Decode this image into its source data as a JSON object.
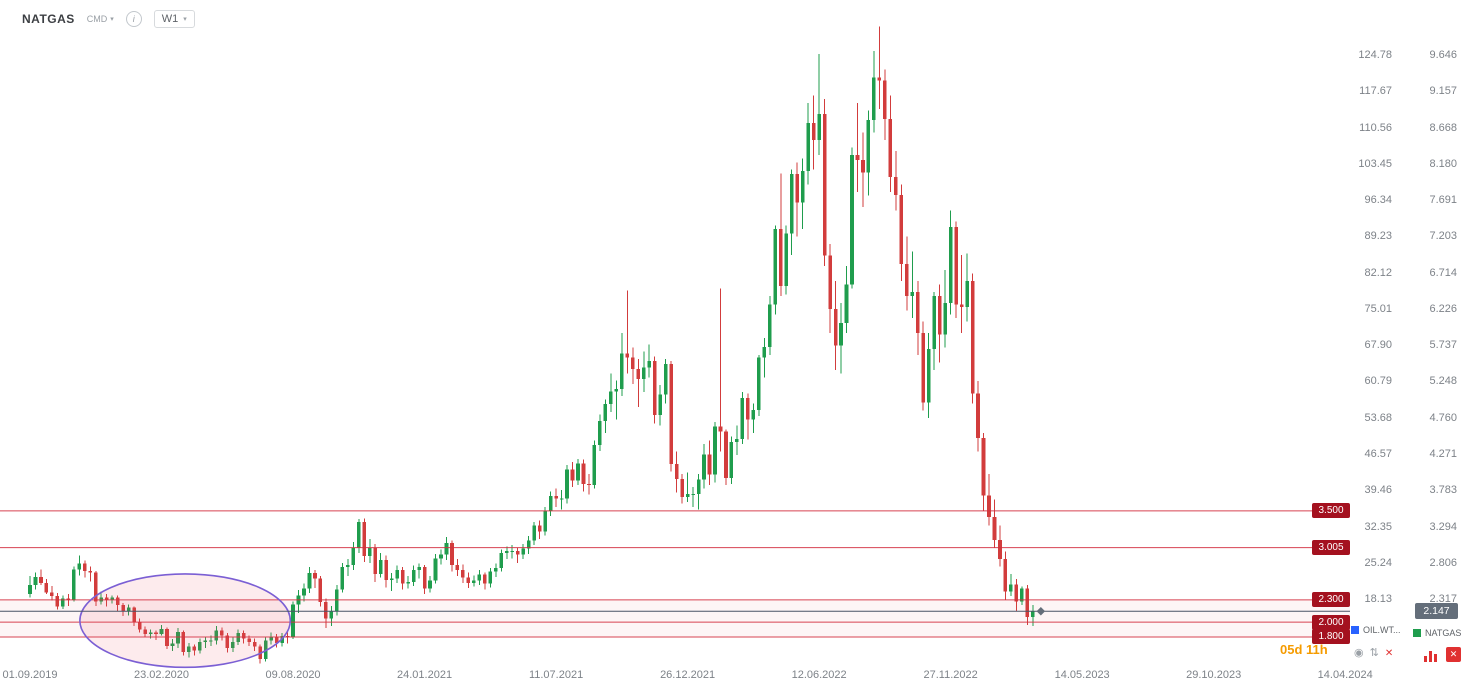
{
  "header": {
    "symbol": "NATGAS",
    "market": "CMD",
    "timeframe": "W1"
  },
  "legend": {
    "overlay_symbol": "OIL.WT...",
    "main_symbol": "NATGAS"
  },
  "footer": {
    "candle_countdown": "05d 11h"
  },
  "colors": {
    "up": "#1f9d4d",
    "down": "#d23c3c",
    "level_line": "#d32f3f",
    "level_badge": "#a4111f",
    "current_badge": "#646e7a",
    "current_line": "#4a5566",
    "accent_orange": "#f59b00",
    "ellipse_stroke": "#7b5fd4",
    "ellipse_fill": "rgba(235,90,110,0.12)",
    "zone_fill": "rgba(220,60,80,0.05)",
    "overlay_square": "#2962ff",
    "main_square": "#1f9d4d",
    "close_red": "#e03131"
  },
  "chart_data": {
    "type": "candlestick",
    "title": "NATGAS weekly (W1) candlestick chart with horizontal price levels and ellipse annotation on the 2020 lows",
    "timeframe": "W1",
    "x_tick_labels": [
      "01.09.2019",
      "23.02.2020",
      "09.08.2020",
      "24.01.2021",
      "11.07.2021",
      "26.12.2021",
      "12.06.2022",
      "27.11.2022",
      "14.05.2023",
      "29.10.2023",
      "14.04.2024"
    ],
    "weeks_per_x_tick": 24,
    "y_axis_percent_labels": [
      "124.78",
      "117.67",
      "110.56",
      "103.45",
      "96.34",
      "89.23",
      "82.12",
      "75.01",
      "67.90",
      "60.79",
      "53.68",
      "46.57",
      "39.46",
      "32.35",
      "25.24",
      "18.13"
    ],
    "y_axis_price_labels": [
      "9.646",
      "9.157",
      "8.668",
      "8.180",
      "7.691",
      "7.203",
      "6.714",
      "6.226",
      "5.737",
      "5.248",
      "4.760",
      "4.271",
      "3.783",
      "3.294",
      "2.806",
      "2.317"
    ],
    "y_axis_top_value": 9.646,
    "y_axis_step": 0.489,
    "levels": [
      {
        "value": 3.5,
        "label": "3.500"
      },
      {
        "value": 3.005,
        "label": "3.005"
      },
      {
        "value": 2.3,
        "label": "2.300"
      },
      {
        "value": 2.0,
        "label": "2.000"
      },
      {
        "value": 1.8,
        "label": "1.800"
      }
    ],
    "shaded_zone": {
      "top": 2.3,
      "bottom": 1.8
    },
    "current_price": 2.147,
    "current_price_label": "2.147",
    "ellipse_annotation": {
      "center_week": 28.3,
      "center_price": 2.02,
      "radius_weeks": 19.2,
      "radius_price": 0.63
    },
    "ohlc_format": [
      "open",
      "high",
      "low",
      "close"
    ],
    "candles": [
      [
        2.38,
        2.62,
        2.33,
        2.5
      ],
      [
        2.5,
        2.67,
        2.44,
        2.61
      ],
      [
        2.61,
        2.71,
        2.5,
        2.53
      ],
      [
        2.53,
        2.58,
        2.38,
        2.4
      ],
      [
        2.4,
        2.49,
        2.29,
        2.35
      ],
      [
        2.35,
        2.39,
        2.17,
        2.21
      ],
      [
        2.21,
        2.36,
        2.18,
        2.32
      ],
      [
        2.32,
        2.38,
        2.22,
        2.3
      ],
      [
        2.3,
        2.75,
        2.28,
        2.71
      ],
      [
        2.71,
        2.9,
        2.63,
        2.79
      ],
      [
        2.79,
        2.83,
        2.6,
        2.69
      ],
      [
        2.69,
        2.75,
        2.55,
        2.67
      ],
      [
        2.67,
        2.69,
        2.22,
        2.28
      ],
      [
        2.28,
        2.41,
        2.24,
        2.33
      ],
      [
        2.33,
        2.38,
        2.21,
        2.3
      ],
      [
        2.3,
        2.36,
        2.25,
        2.33
      ],
      [
        2.33,
        2.36,
        2.15,
        2.23
      ],
      [
        2.23,
        2.26,
        2.08,
        2.14
      ],
      [
        2.14,
        2.24,
        2.09,
        2.2
      ],
      [
        2.2,
        2.21,
        1.95,
        2.0
      ],
      [
        2.0,
        2.05,
        1.86,
        1.9
      ],
      [
        1.9,
        1.94,
        1.8,
        1.84
      ],
      [
        1.84,
        1.9,
        1.78,
        1.86
      ],
      [
        1.86,
        1.89,
        1.76,
        1.84
      ],
      [
        1.84,
        1.96,
        1.82,
        1.91
      ],
      [
        1.91,
        1.93,
        1.64,
        1.68
      ],
      [
        1.68,
        1.77,
        1.61,
        1.71
      ],
      [
        1.71,
        1.92,
        1.65,
        1.87
      ],
      [
        1.87,
        1.89,
        1.55,
        1.6
      ],
      [
        1.6,
        1.72,
        1.52,
        1.67
      ],
      [
        1.67,
        1.7,
        1.55,
        1.62
      ],
      [
        1.62,
        1.78,
        1.58,
        1.73
      ],
      [
        1.73,
        1.8,
        1.65,
        1.75
      ],
      [
        1.75,
        1.82,
        1.68,
        1.75
      ],
      [
        1.75,
        1.95,
        1.7,
        1.89
      ],
      [
        1.89,
        1.93,
        1.75,
        1.82
      ],
      [
        1.82,
        1.85,
        1.59,
        1.65
      ],
      [
        1.65,
        1.79,
        1.6,
        1.73
      ],
      [
        1.73,
        1.9,
        1.69,
        1.85
      ],
      [
        1.85,
        1.89,
        1.71,
        1.78
      ],
      [
        1.78,
        1.82,
        1.68,
        1.73
      ],
      [
        1.73,
        1.78,
        1.61,
        1.67
      ],
      [
        1.67,
        1.7,
        1.44,
        1.5
      ],
      [
        1.5,
        1.79,
        1.47,
        1.75
      ],
      [
        1.75,
        1.86,
        1.7,
        1.8
      ],
      [
        1.8,
        1.84,
        1.66,
        1.72
      ],
      [
        1.72,
        1.85,
        1.67,
        1.81
      ],
      [
        1.81,
        1.86,
        1.71,
        1.8
      ],
      [
        1.8,
        2.28,
        1.77,
        2.24
      ],
      [
        2.24,
        2.43,
        2.12,
        2.36
      ],
      [
        2.36,
        2.52,
        2.28,
        2.45
      ],
      [
        2.45,
        2.74,
        2.39,
        2.66
      ],
      [
        2.66,
        2.7,
        2.46,
        2.59
      ],
      [
        2.59,
        2.62,
        2.21,
        2.27
      ],
      [
        2.27,
        2.32,
        1.92,
        2.05
      ],
      [
        2.05,
        2.22,
        1.95,
        2.14
      ],
      [
        2.14,
        2.5,
        2.09,
        2.44
      ],
      [
        2.44,
        2.8,
        2.4,
        2.74
      ],
      [
        2.74,
        2.85,
        2.62,
        2.77
      ],
      [
        2.77,
        3.08,
        2.7,
        3.0
      ],
      [
        3.0,
        3.39,
        2.93,
        3.35
      ],
      [
        3.35,
        3.4,
        2.81,
        2.89
      ],
      [
        2.89,
        3.12,
        2.8,
        3.0
      ],
      [
        3.0,
        3.05,
        2.54,
        2.65
      ],
      [
        2.65,
        2.93,
        2.6,
        2.84
      ],
      [
        2.84,
        2.9,
        2.47,
        2.57
      ],
      [
        2.57,
        2.66,
        2.42,
        2.59
      ],
      [
        2.59,
        2.76,
        2.53,
        2.7
      ],
      [
        2.7,
        2.74,
        2.44,
        2.52
      ],
      [
        2.52,
        2.62,
        2.45,
        2.54
      ],
      [
        2.54,
        2.76,
        2.49,
        2.7
      ],
      [
        2.7,
        2.79,
        2.59,
        2.74
      ],
      [
        2.74,
        2.77,
        2.38,
        2.45
      ],
      [
        2.45,
        2.62,
        2.4,
        2.56
      ],
      [
        2.56,
        2.92,
        2.52,
        2.86
      ],
      [
        2.86,
        2.98,
        2.78,
        2.91
      ],
      [
        2.91,
        3.15,
        2.84,
        3.07
      ],
      [
        3.07,
        3.1,
        2.68,
        2.77
      ],
      [
        2.77,
        2.85,
        2.62,
        2.7
      ],
      [
        2.7,
        2.78,
        2.53,
        2.6
      ],
      [
        2.6,
        2.67,
        2.46,
        2.53
      ],
      [
        2.53,
        2.63,
        2.48,
        2.56
      ],
      [
        2.56,
        2.7,
        2.5,
        2.64
      ],
      [
        2.64,
        2.67,
        2.44,
        2.52
      ],
      [
        2.52,
        2.73,
        2.47,
        2.68
      ],
      [
        2.68,
        2.79,
        2.61,
        2.73
      ],
      [
        2.73,
        2.98,
        2.68,
        2.93
      ],
      [
        2.93,
        3.02,
        2.85,
        2.96
      ],
      [
        2.96,
        3.04,
        2.86,
        2.96
      ],
      [
        2.96,
        3.0,
        2.8,
        2.91
      ],
      [
        2.91,
        3.05,
        2.85,
        2.99
      ],
      [
        2.99,
        3.16,
        2.92,
        3.1
      ],
      [
        3.1,
        3.35,
        3.04,
        3.3
      ],
      [
        3.3,
        3.37,
        3.12,
        3.22
      ],
      [
        3.22,
        3.55,
        3.17,
        3.5
      ],
      [
        3.5,
        3.76,
        3.43,
        3.7
      ],
      [
        3.7,
        3.8,
        3.55,
        3.67
      ],
      [
        3.67,
        3.78,
        3.52,
        3.67
      ],
      [
        3.67,
        4.12,
        3.6,
        4.06
      ],
      [
        4.06,
        4.16,
        3.82,
        3.91
      ],
      [
        3.91,
        4.2,
        3.85,
        4.14
      ],
      [
        4.14,
        4.19,
        3.76,
        3.86
      ],
      [
        3.86,
        4.0,
        3.72,
        3.85
      ],
      [
        3.85,
        4.45,
        3.8,
        4.39
      ],
      [
        4.39,
        4.8,
        4.31,
        4.71
      ],
      [
        4.71,
        5.0,
        4.55,
        4.94
      ],
      [
        4.94,
        5.35,
        4.83,
        5.11
      ],
      [
        5.11,
        5.26,
        4.73,
        5.14
      ],
      [
        5.14,
        5.9,
        5.05,
        5.62
      ],
      [
        5.62,
        6.47,
        5.35,
        5.57
      ],
      [
        5.57,
        5.7,
        5.21,
        5.41
      ],
      [
        5.41,
        5.55,
        4.9,
        5.28
      ],
      [
        5.28,
        5.65,
        5.1,
        5.43
      ],
      [
        5.43,
        5.74,
        5.3,
        5.52
      ],
      [
        5.52,
        5.58,
        4.68,
        4.79
      ],
      [
        4.79,
        5.2,
        4.65,
        5.07
      ],
      [
        5.07,
        5.55,
        4.95,
        5.48
      ],
      [
        5.48,
        5.52,
        4.03,
        4.13
      ],
      [
        4.13,
        4.3,
        3.75,
        3.93
      ],
      [
        3.93,
        4.0,
        3.6,
        3.69
      ],
      [
        3.69,
        4.02,
        3.62,
        3.73
      ],
      [
        3.73,
        3.82,
        3.55,
        3.73
      ],
      [
        3.73,
        4.0,
        3.52,
        3.92
      ],
      [
        3.92,
        4.4,
        3.8,
        4.26
      ],
      [
        4.26,
        4.45,
        3.85,
        3.99
      ],
      [
        3.99,
        4.7,
        3.88,
        4.64
      ],
      [
        4.64,
        6.5,
        4.3,
        4.57
      ],
      [
        4.57,
        4.6,
        3.85,
        3.94
      ],
      [
        3.94,
        4.5,
        3.86,
        4.43
      ],
      [
        4.43,
        4.65,
        4.25,
        4.47
      ],
      [
        4.47,
        5.1,
        4.4,
        5.02
      ],
      [
        5.02,
        5.08,
        4.46,
        4.73
      ],
      [
        4.73,
        4.95,
        4.55,
        4.86
      ],
      [
        4.86,
        5.6,
        4.78,
        5.57
      ],
      [
        5.57,
        5.83,
        5.3,
        5.71
      ],
      [
        5.71,
        6.4,
        5.6,
        6.28
      ],
      [
        6.28,
        7.35,
        6.15,
        7.3
      ],
      [
        7.3,
        8.05,
        6.4,
        6.53
      ],
      [
        6.53,
        7.35,
        6.42,
        7.24
      ],
      [
        7.24,
        8.1,
        6.95,
        8.04
      ],
      [
        8.04,
        8.2,
        7.2,
        7.66
      ],
      [
        7.66,
        8.25,
        7.3,
        8.08
      ],
      [
        8.08,
        9.0,
        7.9,
        8.73
      ],
      [
        8.73,
        9.1,
        8.1,
        8.5
      ],
      [
        8.5,
        9.66,
        8.3,
        8.85
      ],
      [
        8.85,
        9.05,
        6.8,
        6.94
      ],
      [
        6.94,
        7.1,
        5.9,
        6.22
      ],
      [
        6.22,
        6.6,
        5.4,
        5.73
      ],
      [
        5.73,
        6.3,
        5.35,
        6.03
      ],
      [
        6.03,
        6.8,
        5.9,
        6.55
      ],
      [
        6.55,
        8.4,
        6.5,
        8.3
      ],
      [
        8.3,
        9.0,
        7.8,
        8.23
      ],
      [
        8.23,
        8.6,
        7.6,
        8.06
      ],
      [
        8.06,
        8.9,
        7.75,
        8.77
      ],
      [
        8.77,
        9.7,
        8.6,
        9.34
      ],
      [
        9.34,
        10.03,
        8.92,
        9.3
      ],
      [
        9.3,
        9.45,
        8.5,
        8.78
      ],
      [
        8.78,
        9.1,
        7.8,
        8.0
      ],
      [
        8.0,
        8.35,
        7.55,
        7.76
      ],
      [
        7.76,
        7.9,
        6.6,
        6.83
      ],
      [
        6.83,
        7.2,
        6.2,
        6.4
      ],
      [
        6.4,
        7.0,
        6.1,
        6.45
      ],
      [
        6.45,
        6.6,
        5.6,
        5.9
      ],
      [
        5.9,
        6.05,
        4.85,
        4.96
      ],
      [
        4.96,
        5.9,
        4.75,
        5.68
      ],
      [
        5.68,
        6.45,
        5.4,
        6.4
      ],
      [
        6.4,
        6.55,
        5.5,
        5.88
      ],
      [
        5.88,
        6.75,
        5.7,
        6.3
      ],
      [
        6.3,
        7.55,
        6.15,
        7.33
      ],
      [
        7.33,
        7.4,
        6.1,
        6.28
      ],
      [
        6.28,
        6.95,
        5.9,
        6.25
      ],
      [
        6.25,
        6.97,
        6.05,
        6.6
      ],
      [
        6.6,
        6.7,
        4.95,
        5.08
      ],
      [
        5.08,
        5.25,
        4.3,
        4.48
      ],
      [
        4.48,
        4.55,
        3.5,
        3.71
      ],
      [
        3.71,
        4.0,
        3.3,
        3.42
      ],
      [
        3.42,
        3.65,
        3.0,
        3.11
      ],
      [
        3.11,
        3.3,
        2.75,
        2.85
      ],
      [
        2.85,
        2.95,
        2.3,
        2.41
      ],
      [
        2.41,
        2.65,
        2.35,
        2.51
      ],
      [
        2.51,
        2.58,
        2.15,
        2.28
      ],
      [
        2.28,
        2.48,
        2.23,
        2.45
      ],
      [
        2.45,
        2.5,
        1.96,
        2.07
      ],
      [
        2.07,
        2.23,
        1.95,
        2.147
      ]
    ]
  }
}
